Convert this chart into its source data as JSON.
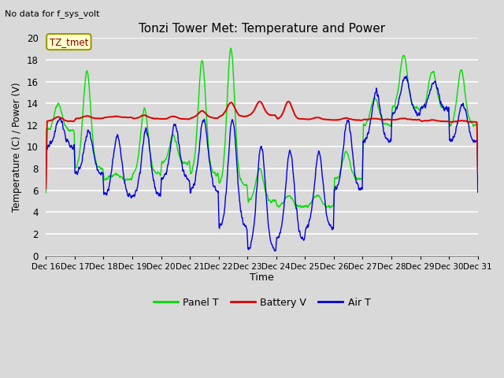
{
  "title": "Tonzi Tower Met: Temperature and Power",
  "top_left_text": "No data for f_sys_volt",
  "xlabel": "Time",
  "ylabel": "Temperature (C) / Power (V)",
  "ylim": [
    0,
    20
  ],
  "tick_labels": [
    "Dec 16",
    "Dec 17",
    "Dec 18",
    "Dec 19",
    "Dec 20",
    "Dec 21",
    "Dec 22",
    "Dec 23",
    "Dec 24",
    "Dec 25",
    "Dec 26",
    "Dec 27",
    "Dec 28",
    "Dec 29",
    "Dec 30",
    "Dec 31"
  ],
  "bg_color": "#d9d9d9",
  "panel_t_color": "#00dd00",
  "battery_v_color": "#dd0000",
  "air_t_color": "#0000dd",
  "legend_label_panel": "Panel T",
  "legend_label_battery": "Battery V",
  "legend_label_air": "Air T",
  "annotation_text": "TZ_tmet",
  "annotation_color": "#880000",
  "annotation_bg": "#ffffcc",
  "annotation_edge": "#999900"
}
